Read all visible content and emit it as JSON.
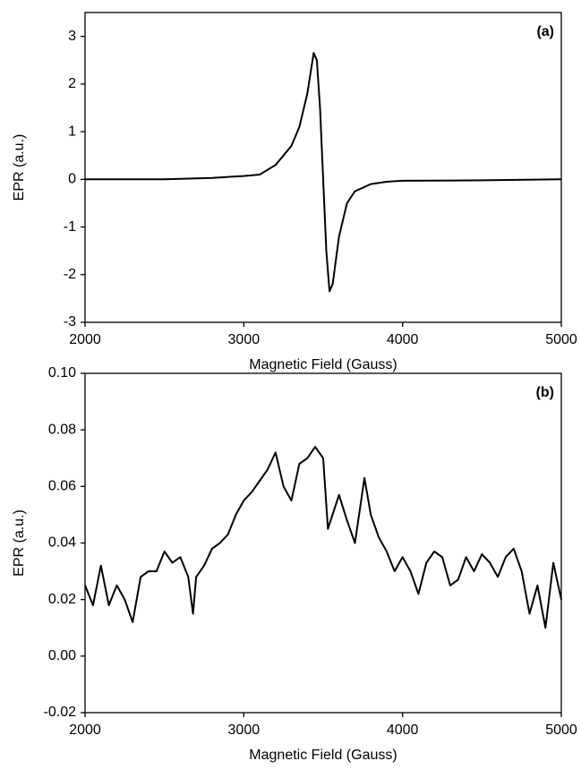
{
  "chart_data": [
    {
      "type": "line",
      "annotation": "(a)",
      "xlabel": "Magnetic Field  (Gauss)",
      "ylabel": "EPR (a.u.)",
      "xlim": [
        2000,
        5000
      ],
      "xticks": [
        2000,
        3000,
        4000,
        5000
      ],
      "ylim": [
        -3,
        3.5
      ],
      "yticks": [
        -3,
        -2,
        -1,
        0,
        1,
        2,
        3
      ],
      "x": [
        2000,
        2500,
        2800,
        3000,
        3100,
        3200,
        3300,
        3350,
        3400,
        3440,
        3460,
        3480,
        3500,
        3520,
        3540,
        3560,
        3600,
        3650,
        3700,
        3800,
        3900,
        4000,
        4500,
        5000
      ],
      "series": [
        {
          "color": "#000000",
          "values": [
            0,
            0,
            0.03,
            0.07,
            0.1,
            0.3,
            0.7,
            1.1,
            1.8,
            2.65,
            2.5,
            1.5,
            0,
            -1.5,
            -2.35,
            -2.2,
            -1.2,
            -0.5,
            -0.25,
            -0.1,
            -0.05,
            -0.03,
            -0.02,
            0
          ]
        }
      ]
    },
    {
      "type": "line",
      "annotation": "(b)",
      "xlabel": "Magnetic Field (Gauss)",
      "ylabel": "EPR (a.u.)",
      "xlim": [
        2000,
        5000
      ],
      "xticks": [
        2000,
        3000,
        4000,
        5000
      ],
      "ylim": [
        -0.02,
        0.1
      ],
      "yticks": [
        -0.02,
        {
          "value": 0,
          "label": "0.00"
        },
        0.02,
        0.04,
        0.06,
        0.08,
        {
          "value": 0.1,
          "label": "0.10"
        }
      ],
      "x": [
        2000,
        2050,
        2100,
        2150,
        2200,
        2250,
        2300,
        2350,
        2400,
        2450,
        2500,
        2550,
        2600,
        2650,
        2680,
        2700,
        2750,
        2800,
        2850,
        2900,
        2950,
        3000,
        3050,
        3100,
        3150,
        3200,
        3250,
        3300,
        3350,
        3400,
        3450,
        3500,
        3530,
        3600,
        3650,
        3700,
        3760,
        3800,
        3850,
        3900,
        3950,
        4000,
        4050,
        4100,
        4150,
        4200,
        4250,
        4300,
        4350,
        4400,
        4450,
        4500,
        4550,
        4600,
        4650,
        4700,
        4750,
        4800,
        4850,
        4900,
        4950,
        5000
      ],
      "series": [
        {
          "color": "#000000",
          "values": [
            0.025,
            0.018,
            0.032,
            0.018,
            0.025,
            0.02,
            0.012,
            0.028,
            0.03,
            0.03,
            0.037,
            0.033,
            0.035,
            0.028,
            0.015,
            0.028,
            0.032,
            0.038,
            0.04,
            0.043,
            0.05,
            0.055,
            0.058,
            0.062,
            0.066,
            0.072,
            0.06,
            0.055,
            0.068,
            0.07,
            0.074,
            0.07,
            0.045,
            0.057,
            0.048,
            0.04,
            0.063,
            0.05,
            0.042,
            0.037,
            0.03,
            0.035,
            0.03,
            0.022,
            0.033,
            0.037,
            0.035,
            0.025,
            0.027,
            0.035,
            0.03,
            0.036,
            0.033,
            0.028,
            0.035,
            0.038,
            0.03,
            0.015,
            0.025,
            0.01,
            0.033,
            0.02
          ]
        }
      ]
    }
  ]
}
